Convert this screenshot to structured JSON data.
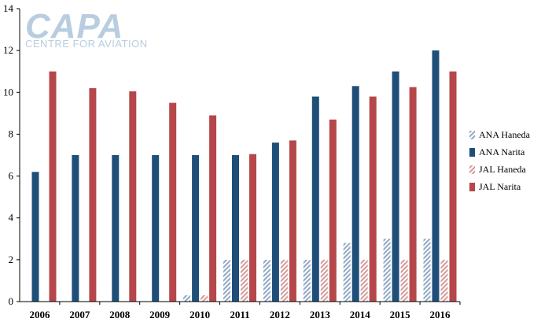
{
  "logo": {
    "main": "CAPA",
    "sub": "CENTRE FOR AVIATION"
  },
  "chart_data": {
    "type": "bar",
    "categories": [
      "2006",
      "2007",
      "2008",
      "2009",
      "2010",
      "2011",
      "2012",
      "2013",
      "2014",
      "2015",
      "2016"
    ],
    "series": [
      {
        "name": "ANA Haneda",
        "values": [
          0,
          0,
          0,
          0,
          0.3,
          2,
          2,
          2,
          2.8,
          3,
          3
        ],
        "color": "#8fa8c8",
        "pattern": "hatched"
      },
      {
        "name": "ANA Narita",
        "values": [
          6.2,
          7,
          7,
          7,
          7,
          7,
          7.6,
          9.8,
          10.3,
          11,
          12
        ],
        "color": "#1f4e79",
        "pattern": "solid"
      },
      {
        "name": "JAL Haneda",
        "values": [
          0,
          0,
          0,
          0,
          0.3,
          2,
          2,
          2,
          2,
          2,
          2
        ],
        "color": "#d49a9a",
        "pattern": "hatched"
      },
      {
        "name": "JAL Narita",
        "values": [
          11,
          10.2,
          10.05,
          9.5,
          8.9,
          7.05,
          7.7,
          8.7,
          9.8,
          10.25,
          11
        ],
        "color": "#b5474b",
        "pattern": "solid"
      }
    ],
    "yticks": [
      "0",
      "2",
      "4",
      "6",
      "8",
      "10",
      "12",
      "14"
    ],
    "ylim": [
      0,
      14
    ],
    "grid": false,
    "legend": "right"
  }
}
